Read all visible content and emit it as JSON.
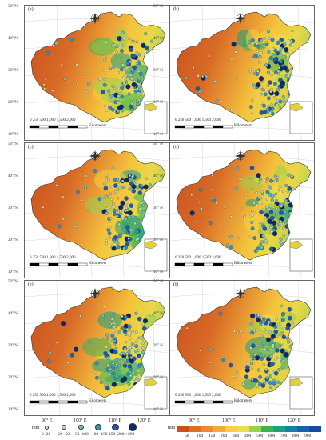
{
  "panels": [
    {
      "label": "(a)",
      "scale_ticks": [
        "0",
        "250 500",
        "1,000",
        "1,500",
        "2,000"
      ],
      "scale_unit": "Kilometers"
    },
    {
      "label": "(b)",
      "scale_ticks": [
        "0",
        "250 500",
        "1,000",
        "1,500",
        "2,000"
      ],
      "scale_unit": "Kilometers"
    },
    {
      "label": "(c)",
      "scale_ticks": [
        "0",
        "250 500",
        "1,000",
        "1,500",
        "2,000"
      ],
      "scale_unit": "Kilometers"
    },
    {
      "label": "(d)",
      "scale_ticks": [
        "0",
        "250 500",
        "1,000",
        "1,500",
        "2,000"
      ],
      "scale_unit": "Kilometers"
    },
    {
      "label": "(e)",
      "scale_ticks": [
        "0",
        "250 500",
        "1,000",
        "1,500",
        "2,000"
      ],
      "scale_unit": "Kilometers"
    },
    {
      "label": "(f)",
      "scale_ticks": [
        "0",
        "250 500",
        "1,000",
        "1,500",
        "2,000"
      ],
      "scale_unit": "Kilometers"
    }
  ],
  "lat_labels": [
    "50° N",
    "40° N",
    "30° N",
    "20° N",
    "10° N"
  ],
  "lon_labels": [
    "90° E",
    "100° E",
    "110° E",
    "120° E"
  ],
  "station_legend": {
    "unit": "mm",
    "classes": [
      "0~20",
      "20~50",
      "50~100",
      "100~150",
      "150~200",
      ">200"
    ],
    "colors": [
      "#f6f0a0",
      "#b8e0b0",
      "#5cc4c8",
      "#2e8fc0",
      "#1d5aa8",
      "#0b2a6e"
    ]
  },
  "raster_legend": {
    "unit": "mm",
    "ticks": [
      "50",
      "100",
      "150",
      "200",
      "300",
      "400",
      "500",
      "600",
      "700",
      "800",
      "900"
    ],
    "colors": [
      "#c8501e",
      "#dc6e28",
      "#e88c30",
      "#f0ac38",
      "#f8d040",
      "#e8e048",
      "#98d050",
      "#40b058",
      "#18a080",
      "#1880a0",
      "#1860b0",
      "#1848a0"
    ]
  }
}
